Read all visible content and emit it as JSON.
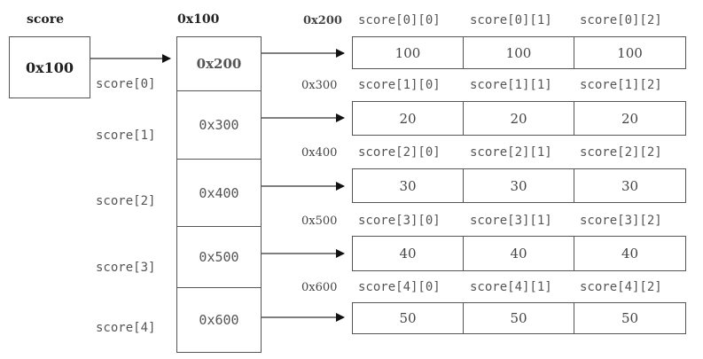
{
  "score_label": "score",
  "score_value": "0x100",
  "pointer_array_label": "0x100",
  "pointer_cells": [
    "0x200",
    "0x300",
    "0x400",
    "0x500",
    "0x600"
  ],
  "row_labels": [
    "score[0]",
    "score[1]",
    "score[2]",
    "score[3]",
    "score[4]"
  ],
  "rows": [
    {
      "address": "0x200",
      "headers": [
        "score[0][0]",
        "score[0][1]",
        "score[0][2]"
      ],
      "values": [
        "100",
        "100",
        "100"
      ]
    },
    {
      "address": "0x300",
      "headers": [
        "score[1][0]",
        "score[1][1]",
        "score[1][2]"
      ],
      "values": [
        "20",
        "20",
        "20"
      ]
    },
    {
      "address": "0x400",
      "headers": [
        "score[2][0]",
        "score[2][1]",
        "score[2][2]"
      ],
      "values": [
        "30",
        "30",
        "30"
      ]
    },
    {
      "address": "0x500",
      "headers": [
        "score[3][0]",
        "score[3][1]",
        "score[3][2]"
      ],
      "values": [
        "40",
        "40",
        "40"
      ]
    },
    {
      "address": "0x600",
      "headers": [
        "score[4][0]",
        "score[4][1]",
        "score[4][2]"
      ],
      "values": [
        "50",
        "50",
        "50"
      ]
    }
  ]
}
